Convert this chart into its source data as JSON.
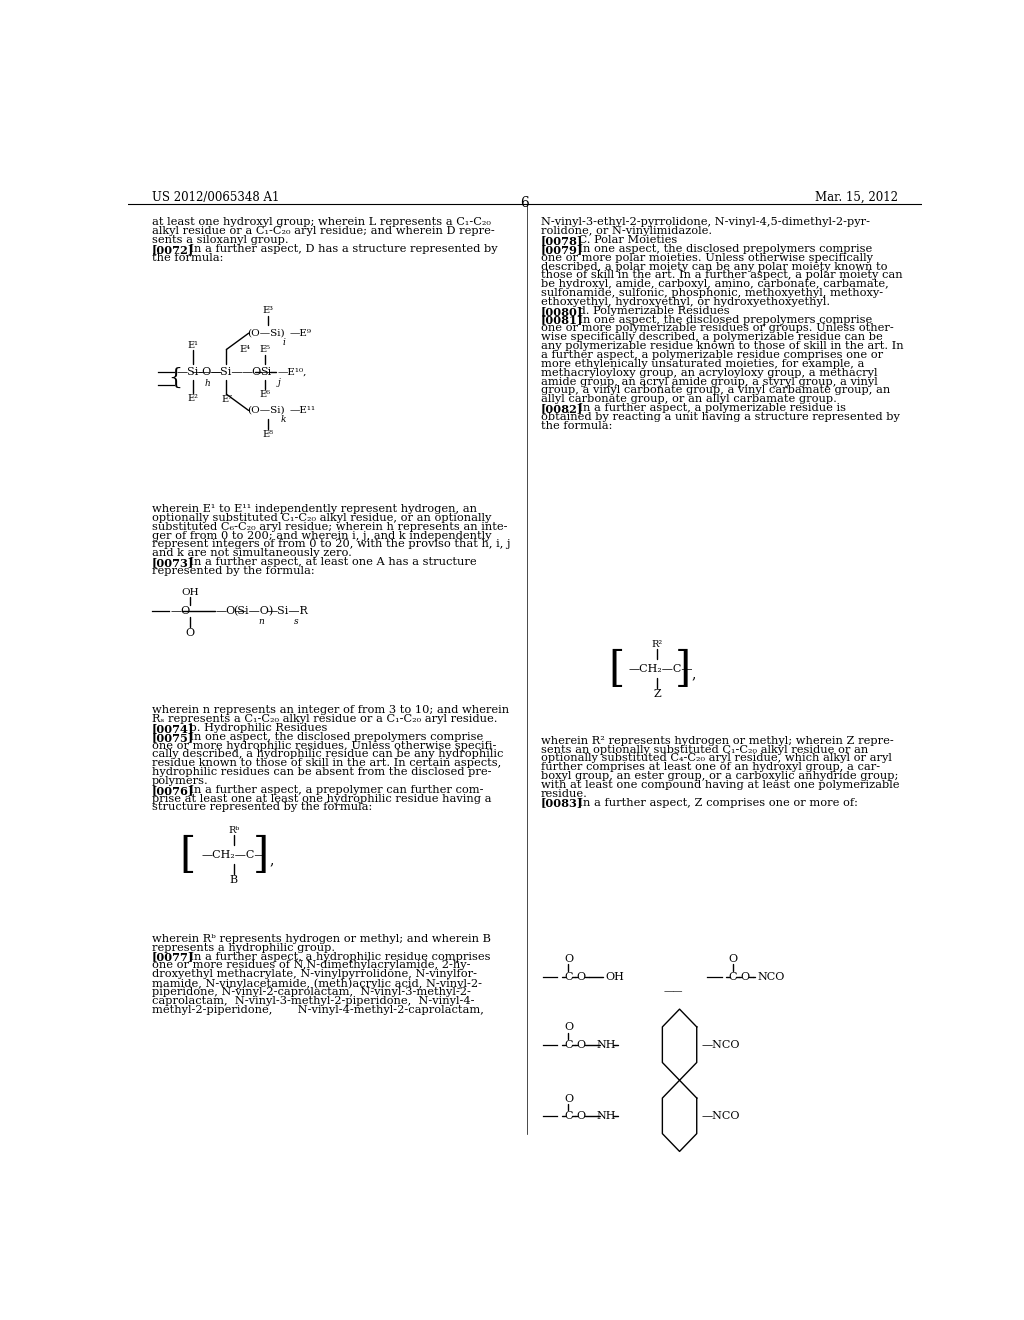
{
  "bg_color": "#ffffff",
  "header_left": "US 2012/0065348 A1",
  "header_right": "Mar. 15, 2012",
  "page_number": "6"
}
